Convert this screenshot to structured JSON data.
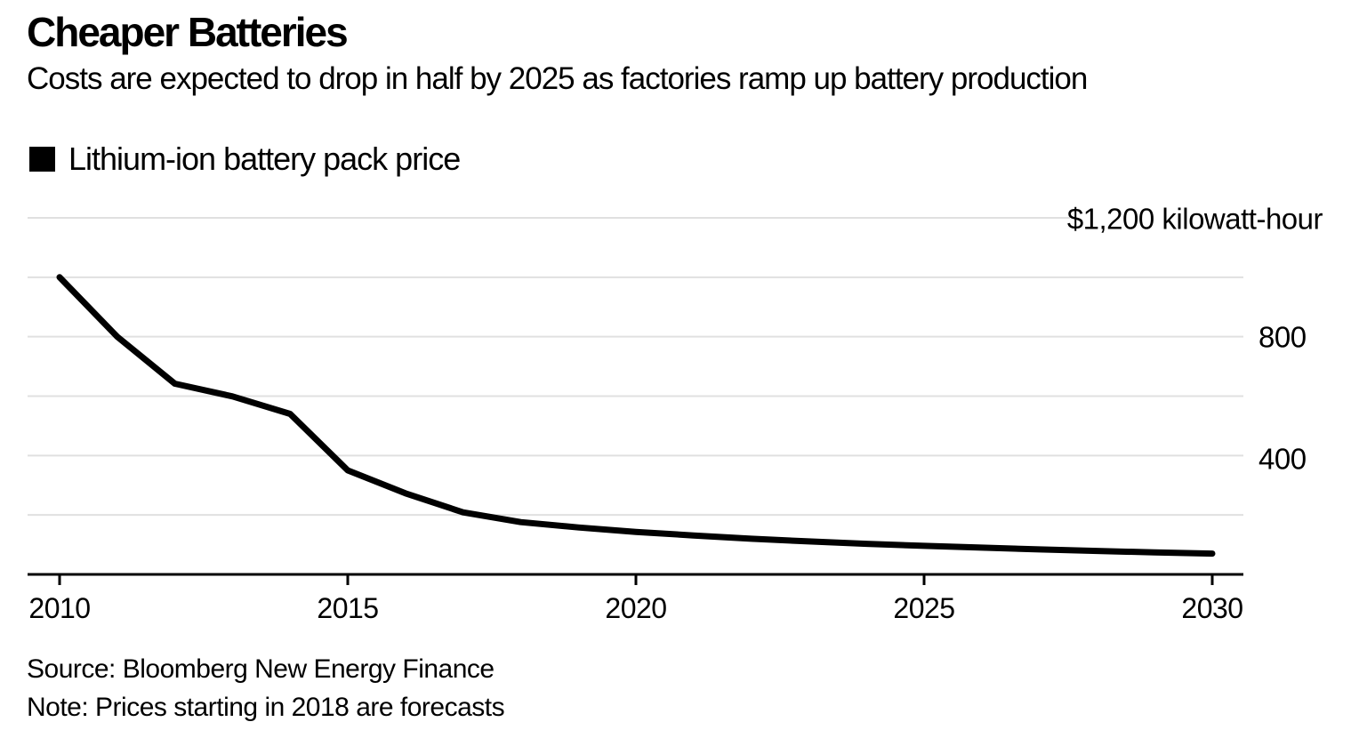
{
  "header": {
    "title": "Cheaper Batteries",
    "subtitle": "Costs are expected to drop in half by 2025 as factories ramp up battery production"
  },
  "legend": {
    "label": "Lithium-ion battery pack price",
    "swatch_color": "#000000"
  },
  "footer": {
    "source": "Source: Bloomberg New Energy Finance",
    "note": "Note: Prices starting in 2018 are forecasts"
  },
  "colors": {
    "background": "#ffffff",
    "text": "#000000",
    "line": "#000000",
    "grid": "#e0e0e0",
    "axis": "#000000"
  },
  "chart_data": {
    "type": "line",
    "title": "Cheaper Batteries",
    "subtitle": "Costs are expected to drop in half by 2025 as factories ramp up battery production",
    "x": [
      2010,
      2011,
      2012,
      2013,
      2014,
      2015,
      2016,
      2017,
      2018,
      2019,
      2020,
      2021,
      2022,
      2023,
      2024,
      2025,
      2026,
      2027,
      2028,
      2029,
      2030
    ],
    "series": [
      {
        "name": "Lithium-ion battery pack price",
        "color": "#000000",
        "values": [
          1000,
          800,
          642,
          599,
          540,
          350,
          273,
          209,
          176,
          158,
          143,
          131,
          120,
          111,
          103,
          96,
          90,
          84,
          79,
          74,
          70
        ]
      }
    ],
    "unit_label": "$ kilowatt-hour",
    "forecast_start": 2018,
    "ylim": [
      0,
      1200
    ],
    "xlim": [
      2010,
      2030
    ],
    "grid": "horizontal",
    "legend_position": "top-left",
    "y_ticks": [
      {
        "value": 1200,
        "label": "$1,200 kilowatt-hour"
      },
      {
        "value": 800,
        "label": "800"
      },
      {
        "value": 400,
        "label": "400"
      }
    ],
    "gridlines_unlabeled": [
      1000,
      600,
      200
    ],
    "x_ticks": [
      2010,
      2015,
      2020,
      2025,
      2030
    ],
    "x_tick_labels": [
      "2010",
      "2015",
      "2020",
      "2025",
      "2030"
    ],
    "y_tick_labels": [
      "$1,200 kilowatt-hour",
      "800",
      "400"
    ]
  }
}
